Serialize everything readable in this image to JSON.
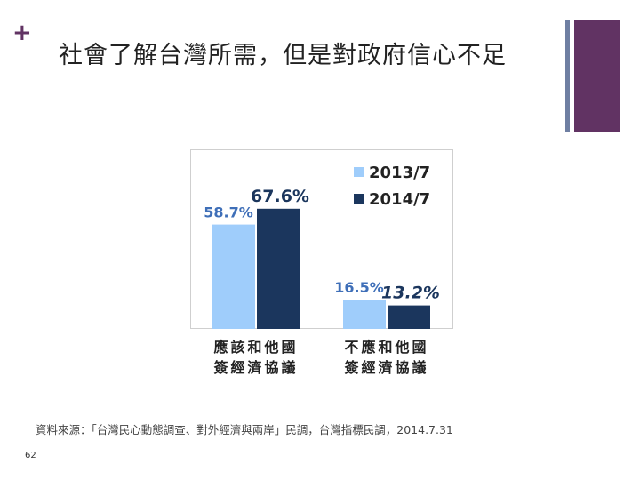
{
  "slide": {
    "plus_mark": "+",
    "title": "社會了解台灣所需，但是對政府信心不足",
    "source": "資料來源：「台灣民心動態調查、對外經濟與兩岸」民調，台灣指標民調，2014.7.31",
    "page_number": "62"
  },
  "colors": {
    "accent_purple": "#613363",
    "thin_bar": "#6f7fa2",
    "series_2013": "#9fcdfb",
    "series_2014": "#1b365d",
    "label_2013": "#3f6fb8",
    "label_2014": "#1b365d",
    "text_dark": "#222222"
  },
  "chart_data": {
    "type": "bar",
    "categories": [
      "應該和他國簽經濟協議",
      "不應和他國簽經濟協議"
    ],
    "category_lines": [
      [
        "應該和他國",
        "簽經濟協議"
      ],
      [
        "不應和他國",
        "簽經濟協議"
      ]
    ],
    "series": [
      {
        "name": "2013/7",
        "values": [
          58.7,
          16.5
        ],
        "labels": [
          "58.7%",
          "16.5%"
        ]
      },
      {
        "name": "2014/7",
        "values": [
          67.6,
          13.2
        ],
        "labels": [
          "67.6%",
          "13.2%"
        ]
      }
    ],
    "ylim": [
      0,
      100
    ],
    "grid": false,
    "legend_position": "top-right"
  }
}
